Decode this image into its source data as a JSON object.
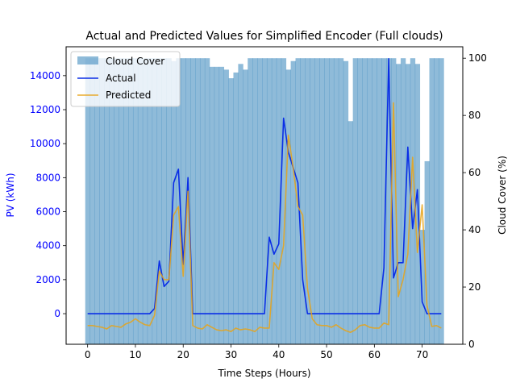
{
  "chart_data": {
    "type": "bar+line",
    "title": "Actual and Predicted Values for Simplified Encoder (Full clouds)",
    "xlabel": "Time Steps (Hours)",
    "ylabel_left": "PV (kWh)",
    "ylabel_right": "Cloud Cover (%)",
    "xlim": [
      -4.5,
      78.5
    ],
    "ylim_left": [
      -1800,
      15700
    ],
    "ylim_right": [
      0,
      104
    ],
    "x_ticks": [
      0,
      10,
      20,
      30,
      40,
      50,
      60,
      70
    ],
    "y_ticks_left": [
      0,
      2000,
      4000,
      6000,
      8000,
      10000,
      12000,
      14000
    ],
    "y_ticks_right": [
      0,
      20,
      40,
      60,
      80,
      100
    ],
    "x_tick_labels": [
      "0",
      "10",
      "20",
      "30",
      "40",
      "50",
      "60",
      "70"
    ],
    "y_tick_labels_left": [
      "0",
      "2000",
      "4000",
      "6000",
      "8000",
      "10000",
      "12000",
      "14000"
    ],
    "y_tick_labels_right": [
      "0",
      "20",
      "40",
      "60",
      "80",
      "100"
    ],
    "legend_position": "upper-left",
    "colors": {
      "cloud": "#1f77b4",
      "actual": "#0a2ee6",
      "predicted": "#e8a317",
      "left_axis_text": "#0000ff"
    },
    "series": [
      {
        "name": "Cloud Cover",
        "kind": "bar",
        "axis": "right",
        "x": [
          0,
          1,
          2,
          3,
          4,
          5,
          6,
          7,
          8,
          9,
          10,
          11,
          12,
          13,
          14,
          15,
          16,
          17,
          18,
          19,
          20,
          21,
          22,
          23,
          24,
          25,
          26,
          27,
          28,
          29,
          30,
          31,
          32,
          33,
          34,
          35,
          36,
          37,
          38,
          39,
          40,
          41,
          42,
          43,
          44,
          45,
          46,
          47,
          48,
          49,
          50,
          51,
          52,
          53,
          54,
          55,
          56,
          57,
          58,
          59,
          60,
          61,
          62,
          63,
          64,
          65,
          66,
          67,
          68,
          69,
          70,
          71,
          72,
          73,
          74
        ],
        "values": [
          100,
          100,
          100,
          100,
          100,
          100,
          100,
          100,
          100,
          100,
          100,
          100,
          100,
          100,
          100,
          100,
          100,
          100,
          99,
          100,
          100,
          100,
          100,
          100,
          100,
          100,
          97,
          97,
          97,
          96,
          93,
          95,
          98,
          96,
          100,
          100,
          100,
          100,
          100,
          100,
          100,
          100,
          96,
          99,
          100,
          100,
          100,
          100,
          100,
          100,
          100,
          100,
          100,
          100,
          99,
          78,
          100,
          100,
          100,
          100,
          100,
          100,
          100,
          100,
          100,
          98,
          100,
          98,
          100,
          98,
          40,
          64,
          100,
          100,
          100
        ]
      },
      {
        "name": "Actual",
        "kind": "line",
        "axis": "left",
        "x": [
          0,
          1,
          2,
          3,
          4,
          5,
          6,
          7,
          8,
          9,
          10,
          11,
          12,
          13,
          14,
          15,
          16,
          17,
          18,
          19,
          20,
          21,
          22,
          23,
          24,
          25,
          26,
          27,
          28,
          29,
          30,
          31,
          32,
          33,
          34,
          35,
          36,
          37,
          38,
          39,
          40,
          41,
          42,
          43,
          44,
          45,
          46,
          47,
          48,
          49,
          50,
          51,
          52,
          53,
          54,
          55,
          56,
          57,
          58,
          59,
          60,
          61,
          62,
          63,
          64,
          65,
          66,
          67,
          68,
          69,
          70,
          71,
          72,
          73,
          74
        ],
        "values": [
          0,
          0,
          0,
          0,
          0,
          0,
          0,
          0,
          0,
          0,
          0,
          0,
          0,
          0,
          300,
          3100,
          1600,
          1900,
          7700,
          8500,
          2900,
          8000,
          0,
          0,
          0,
          0,
          0,
          0,
          0,
          0,
          0,
          0,
          0,
          0,
          0,
          0,
          0,
          0,
          4500,
          3500,
          4100,
          11500,
          9500,
          8600,
          7700,
          2000,
          0,
          0,
          0,
          0,
          0,
          0,
          0,
          0,
          0,
          0,
          0,
          0,
          0,
          0,
          0,
          0,
          2700,
          15000,
          2100,
          3000,
          3000,
          9800,
          5000,
          7300,
          700,
          0,
          0,
          0,
          0
        ]
      },
      {
        "name": "Predicted",
        "kind": "line",
        "axis": "left",
        "x": [
          0,
          1,
          2,
          3,
          4,
          5,
          6,
          7,
          8,
          9,
          10,
          11,
          12,
          13,
          14,
          15,
          16,
          17,
          18,
          19,
          20,
          21,
          22,
          23,
          24,
          25,
          26,
          27,
          28,
          29,
          30,
          31,
          32,
          33,
          34,
          35,
          36,
          37,
          38,
          39,
          40,
          41,
          42,
          43,
          44,
          45,
          46,
          47,
          48,
          49,
          50,
          51,
          52,
          53,
          54,
          55,
          56,
          57,
          58,
          59,
          60,
          61,
          62,
          63,
          64,
          65,
          66,
          67,
          68,
          69,
          70,
          71,
          72,
          73,
          74
        ],
        "values": [
          -700,
          -700,
          -750,
          -800,
          -900,
          -700,
          -750,
          -800,
          -600,
          -500,
          -300,
          -500,
          -650,
          -700,
          -100,
          2500,
          2000,
          2000,
          5800,
          6300,
          2200,
          7200,
          -700,
          -850,
          -900,
          -650,
          -800,
          -950,
          -1000,
          -950,
          -1050,
          -850,
          -950,
          -900,
          -950,
          -1050,
          -800,
          -850,
          -850,
          3000,
          2600,
          4000,
          10500,
          8600,
          6300,
          5800,
          1500,
          -300,
          -650,
          -700,
          -700,
          -800,
          -650,
          -850,
          -1000,
          -1100,
          -950,
          -700,
          -650,
          -800,
          -850,
          -850,
          -550,
          -650,
          12400,
          1000,
          2000,
          3500,
          9200,
          3600,
          6400,
          500,
          -750,
          -700,
          -850
        ]
      }
    ]
  }
}
